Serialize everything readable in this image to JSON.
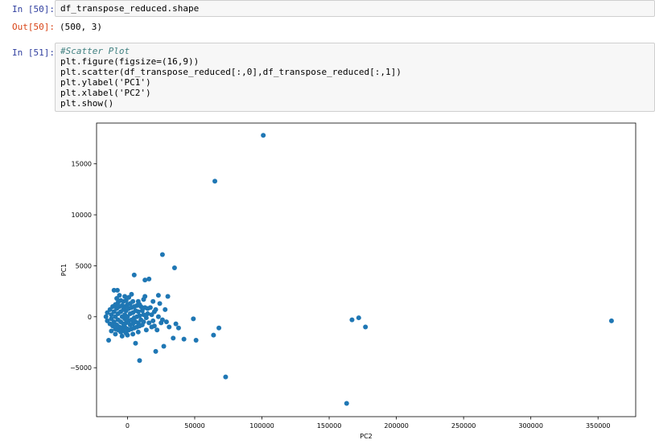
{
  "cells": [
    {
      "prompt": "In [50]:",
      "code_lines": [
        "df_transpose_reduced.shape"
      ],
      "output_prompt": "Out[50]:",
      "output_text": "(500, 3)"
    },
    {
      "prompt": "In [51]:",
      "code_lines": [
        "#Scatter Plot",
        "plt.figure(figsize=(16,9))",
        "plt.scatter(df_transpose_reduced[:,0],df_transpose_reduced[:,1])",
        "plt.ylabel('PC1')",
        "plt.xlabel('PC2')",
        "plt.show()"
      ]
    }
  ],
  "colors": {
    "marker": "#1f77b4",
    "in_prompt": "#303f9f",
    "out_prompt": "#d84315"
  },
  "chart_data": {
    "type": "scatter",
    "xlabel": "PC2",
    "ylabel": "PC1",
    "xlim": [
      -23000,
      378000
    ],
    "ylim": [
      -9800,
      19000
    ],
    "xticks": [
      0,
      50000,
      100000,
      150000,
      200000,
      250000,
      300000,
      350000
    ],
    "yticks": [
      -5000,
      0,
      5000,
      10000,
      15000
    ],
    "grid": false,
    "points": [
      {
        "x": 101000,
        "y": 17800
      },
      {
        "x": 65000,
        "y": 13300
      },
      {
        "x": 26000,
        "y": 6100
      },
      {
        "x": 35000,
        "y": 4800
      },
      {
        "x": 5000,
        "y": 4100
      },
      {
        "x": 16000,
        "y": 3700
      },
      {
        "x": 13000,
        "y": 3600
      },
      {
        "x": -10000,
        "y": 2600
      },
      {
        "x": -7500,
        "y": 2600
      },
      {
        "x": -14000,
        "y": -2300
      },
      {
        "x": 9000,
        "y": -4300
      },
      {
        "x": 21000,
        "y": -3400
      },
      {
        "x": 27000,
        "y": -2900
      },
      {
        "x": 34000,
        "y": -2100
      },
      {
        "x": 42000,
        "y": -2200
      },
      {
        "x": 51000,
        "y": -2300
      },
      {
        "x": 64000,
        "y": -1800
      },
      {
        "x": 68000,
        "y": -1100
      },
      {
        "x": 49000,
        "y": -200
      },
      {
        "x": 73000,
        "y": -5900
      },
      {
        "x": 163000,
        "y": -8500
      },
      {
        "x": 167000,
        "y": -300
      },
      {
        "x": 172000,
        "y": -100
      },
      {
        "x": 177000,
        "y": -1000
      },
      {
        "x": 360000,
        "y": -400
      },
      {
        "x": 6000,
        "y": -2600
      },
      {
        "x": 23000,
        "y": 2100
      },
      {
        "x": 30000,
        "y": 2000
      },
      {
        "x": 19000,
        "y": 1500
      },
      {
        "x": 24000,
        "y": 1300
      },
      {
        "x": 28000,
        "y": 700
      },
      {
        "x": 36000,
        "y": -700
      },
      {
        "x": 31000,
        "y": -1000
      },
      {
        "x": 38000,
        "y": -1100
      },
      {
        "x": 13000,
        "y": 2000
      },
      {
        "x": 12000,
        "y": 1700
      },
      {
        "x": 10000,
        "y": 1000
      },
      {
        "x": 15000,
        "y": 800
      },
      {
        "x": 20000,
        "y": 500
      },
      {
        "x": 3000,
        "y": 2200
      },
      {
        "x": 22000,
        "y": -1300
      },
      {
        "x": 18000,
        "y": -1000
      },
      {
        "x": 14000,
        "y": -1300
      },
      {
        "x": 25000,
        "y": -600
      },
      {
        "x": 8000,
        "y": 1500
      },
      {
        "x": -16000,
        "y": 0
      },
      {
        "x": -15000,
        "y": 400
      },
      {
        "x": -15000,
        "y": -400
      },
      {
        "x": -13000,
        "y": 700
      },
      {
        "x": -13000,
        "y": -700
      },
      {
        "x": -12000,
        "y": 200
      },
      {
        "x": -12000,
        "y": -200
      },
      {
        "x": -11000,
        "y": 1000
      },
      {
        "x": -11000,
        "y": -900
      },
      {
        "x": -10000,
        "y": 500
      },
      {
        "x": -10000,
        "y": -500
      },
      {
        "x": -9000,
        "y": 1200
      },
      {
        "x": -9000,
        "y": 0
      },
      {
        "x": -9000,
        "y": -1200
      },
      {
        "x": -8000,
        "y": 800
      },
      {
        "x": -8000,
        "y": -800
      },
      {
        "x": -7000,
        "y": 1400
      },
      {
        "x": -7000,
        "y": 300
      },
      {
        "x": -7000,
        "y": -300
      },
      {
        "x": -7000,
        "y": -1300
      },
      {
        "x": -6000,
        "y": 1000
      },
      {
        "x": -6000,
        "y": -1000
      },
      {
        "x": -5000,
        "y": 1600
      },
      {
        "x": -5000,
        "y": 500
      },
      {
        "x": -5000,
        "y": -500
      },
      {
        "x": -5000,
        "y": -1500
      },
      {
        "x": -4000,
        "y": 1100
      },
      {
        "x": -4000,
        "y": 0
      },
      {
        "x": -4000,
        "y": -1100
      },
      {
        "x": -3000,
        "y": 1500
      },
      {
        "x": -3000,
        "y": 700
      },
      {
        "x": -3000,
        "y": -700
      },
      {
        "x": -3000,
        "y": -1400
      },
      {
        "x": -2000,
        "y": 1000
      },
      {
        "x": -2000,
        "y": 200
      },
      {
        "x": -2000,
        "y": -200
      },
      {
        "x": -2000,
        "y": -1000
      },
      {
        "x": -1000,
        "y": 1600
      },
      {
        "x": -1000,
        "y": 600
      },
      {
        "x": -1000,
        "y": -600
      },
      {
        "x": -1000,
        "y": -1600
      },
      {
        "x": 0,
        "y": 1200
      },
      {
        "x": 0,
        "y": 0
      },
      {
        "x": 0,
        "y": -1200
      },
      {
        "x": 1000,
        "y": 800
      },
      {
        "x": 1000,
        "y": -400
      },
      {
        "x": 1000,
        "y": -1300
      },
      {
        "x": 2000,
        "y": 1300
      },
      {
        "x": 2000,
        "y": 300
      },
      {
        "x": 2000,
        "y": -800
      },
      {
        "x": 3000,
        "y": 900
      },
      {
        "x": 3000,
        "y": -300
      },
      {
        "x": 3000,
        "y": -1200
      },
      {
        "x": 4000,
        "y": 1500
      },
      {
        "x": 4000,
        "y": 400
      },
      {
        "x": 4000,
        "y": -700
      },
      {
        "x": 5000,
        "y": 1000
      },
      {
        "x": 5000,
        "y": -100
      },
      {
        "x": 5000,
        "y": -1100
      },
      {
        "x": 6000,
        "y": 600
      },
      {
        "x": 6000,
        "y": -500
      },
      {
        "x": 7000,
        "y": 1100
      },
      {
        "x": 7000,
        "y": 0
      },
      {
        "x": 7000,
        "y": -1000
      },
      {
        "x": 8000,
        "y": 500
      },
      {
        "x": 8000,
        "y": -600
      },
      {
        "x": 9000,
        "y": 1200
      },
      {
        "x": 9000,
        "y": 100
      },
      {
        "x": 9000,
        "y": -900
      },
      {
        "x": 10000,
        "y": -300
      },
      {
        "x": 11000,
        "y": 600
      },
      {
        "x": 11000,
        "y": -800
      },
      {
        "x": 12000,
        "y": 200
      },
      {
        "x": 12000,
        "y": -500
      },
      {
        "x": 13000,
        "y": 900
      },
      {
        "x": 14000,
        "y": -100
      },
      {
        "x": 15000,
        "y": 300
      },
      {
        "x": 16000,
        "y": -600
      },
      {
        "x": 17000,
        "y": 900
      },
      {
        "x": 18000,
        "y": 200
      },
      {
        "x": 19000,
        "y": -400
      },
      {
        "x": 20000,
        "y": -900
      },
      {
        "x": 21000,
        "y": 700
      },
      {
        "x": 23000,
        "y": 0
      },
      {
        "x": 26000,
        "y": -300
      },
      {
        "x": 29000,
        "y": -500
      },
      {
        "x": -6000,
        "y": 2100
      },
      {
        "x": -2000,
        "y": 2000
      },
      {
        "x": 1000,
        "y": 1900
      },
      {
        "x": -8000,
        "y": 1800
      },
      {
        "x": -12000,
        "y": -1400
      },
      {
        "x": -9000,
        "y": -1700
      },
      {
        "x": -4000,
        "y": -1900
      },
      {
        "x": 0,
        "y": -1800
      },
      {
        "x": 4000,
        "y": -1700
      },
      {
        "x": 8000,
        "y": -1500
      }
    ]
  }
}
